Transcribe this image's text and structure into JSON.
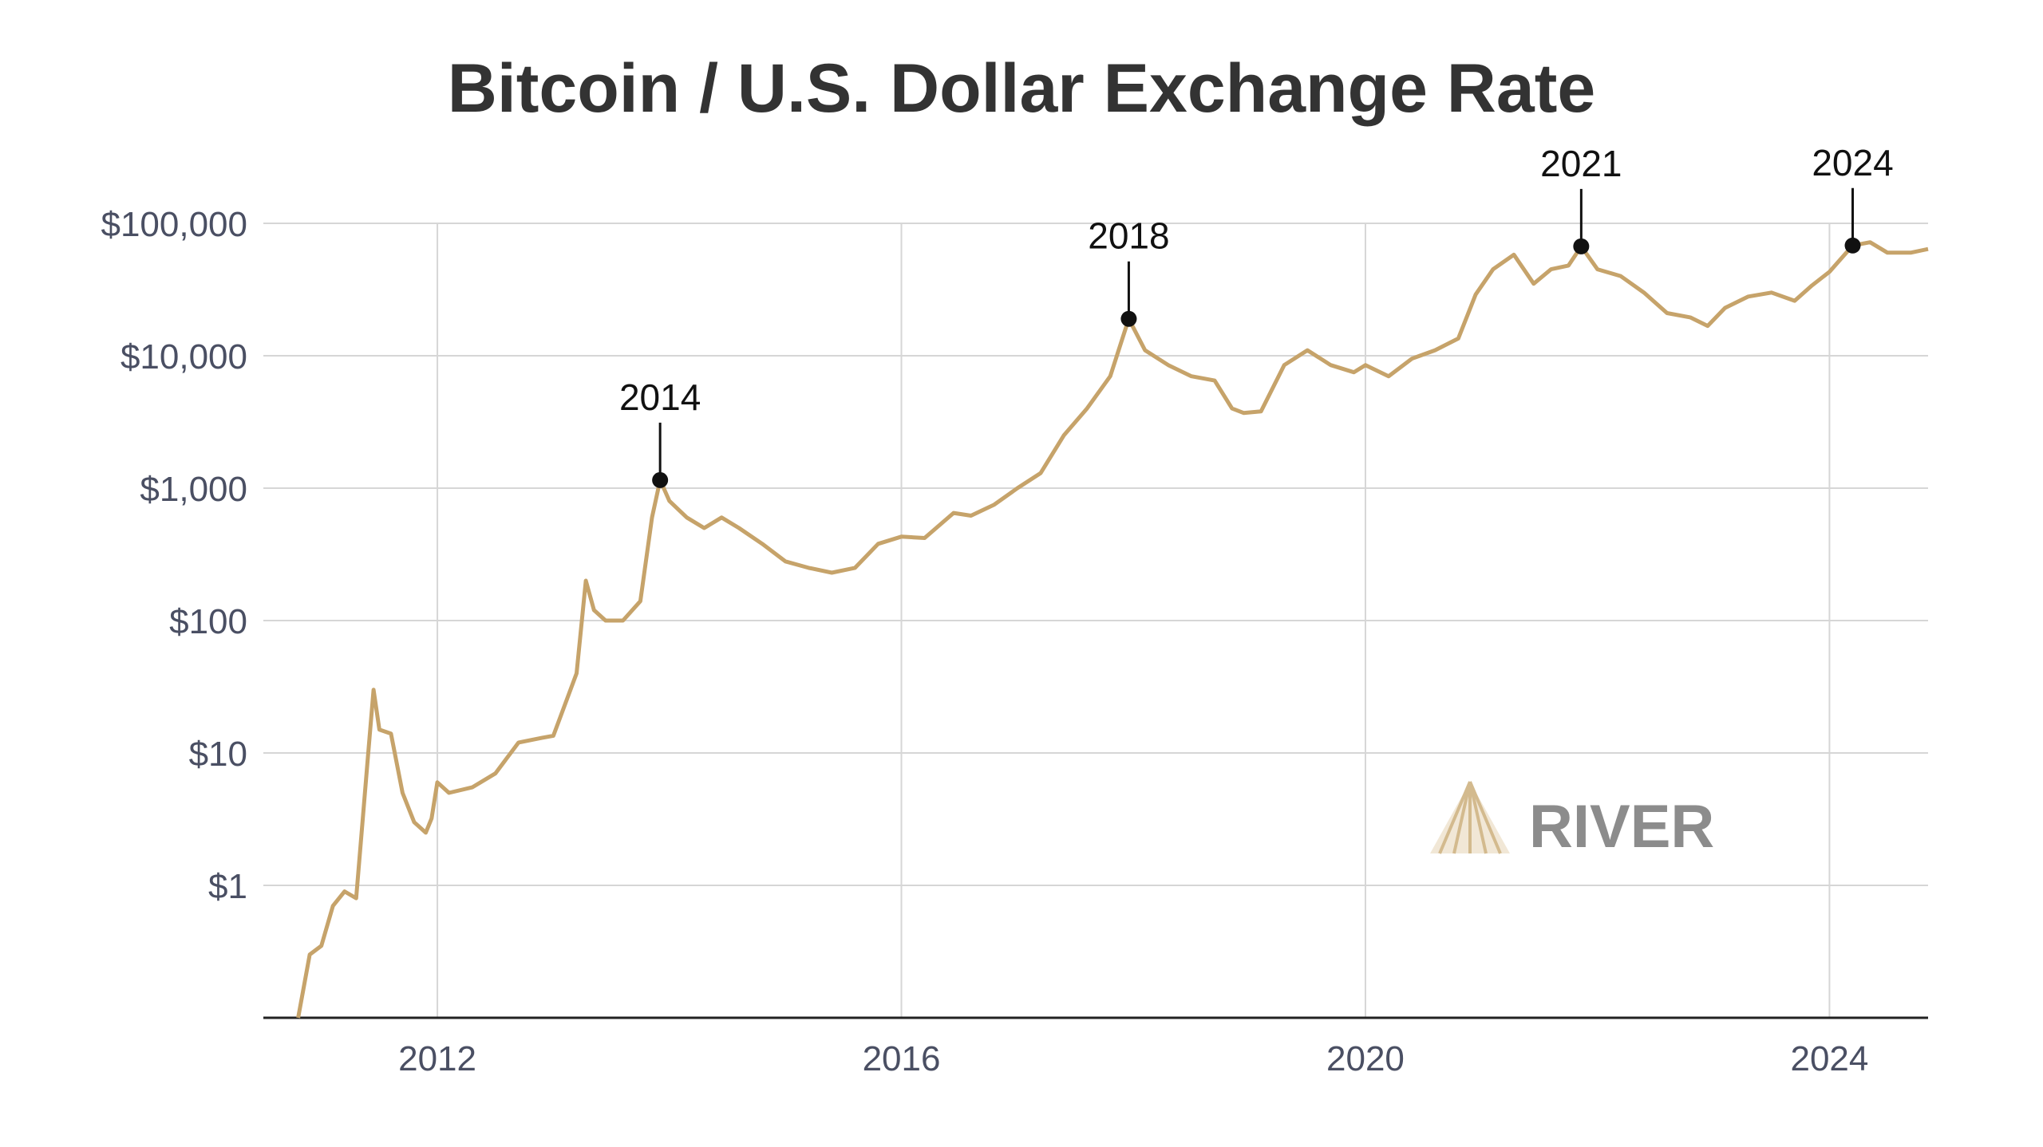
{
  "chart_data": {
    "type": "line",
    "title": "Bitcoin / U.S. Dollar Exchange Rate",
    "xlabel": "",
    "ylabel": "",
    "y_scale": "log",
    "grid": true,
    "x_ticks": [
      "2012",
      "2016",
      "2020",
      "2024"
    ],
    "x_tick_values": [
      2012,
      2016,
      2020,
      2024
    ],
    "y_ticks": [
      "$1",
      "$10",
      "$100",
      "$1,000",
      "$10,000",
      "$100,000"
    ],
    "y_tick_values": [
      1,
      10,
      100,
      1000,
      10000,
      100000
    ],
    "xlim": [
      2010.5,
      2024.85
    ],
    "ylim": [
      0.1,
      100000
    ],
    "line_color": "#c6a36a",
    "series": [
      {
        "x": [
          2010.8,
          2010.9,
          2011.0,
          2011.1,
          2011.2,
          2011.3,
          2011.4,
          2011.45,
          2011.5,
          2011.6,
          2011.7,
          2011.8,
          2011.9,
          2011.95,
          2012.0,
          2012.1,
          2012.3,
          2012.5,
          2012.7,
          2012.9,
          2013.0,
          2013.2,
          2013.28,
          2013.35,
          2013.45,
          2013.6,
          2013.75,
          2013.85,
          2013.92,
          2014.0,
          2014.15,
          2014.3,
          2014.45,
          2014.6,
          2014.8,
          2015.0,
          2015.2,
          2015.4,
          2015.6,
          2015.8,
          2016.0,
          2016.2,
          2016.45,
          2016.6,
          2016.8,
          2017.0,
          2017.2,
          2017.4,
          2017.6,
          2017.8,
          2017.96,
          2018.1,
          2018.3,
          2018.5,
          2018.7,
          2018.85,
          2018.95,
          2019.1,
          2019.3,
          2019.5,
          2019.7,
          2019.9,
          2020.0,
          2020.2,
          2020.4,
          2020.6,
          2020.8,
          2020.95,
          2021.1,
          2021.28,
          2021.45,
          2021.6,
          2021.75,
          2021.86,
          2022.0,
          2022.2,
          2022.4,
          2022.6,
          2022.8,
          2022.95,
          2023.1,
          2023.3,
          2023.5,
          2023.7,
          2023.85,
          2024.0,
          2024.2,
          2024.35,
          2024.5,
          2024.7,
          2024.85
        ],
        "y": [
          0.08,
          0.3,
          0.35,
          0.7,
          0.9,
          0.8,
          9,
          30,
          15,
          14,
          5,
          3,
          2.5,
          3.2,
          6,
          5,
          5.5,
          7,
          12,
          13,
          13.5,
          40,
          200,
          120,
          100,
          100,
          140,
          600,
          1150,
          800,
          600,
          500,
          600,
          500,
          380,
          280,
          250,
          230,
          250,
          380,
          430,
          420,
          650,
          620,
          750,
          1000,
          1300,
          2500,
          4000,
          7000,
          19000,
          11000,
          8500,
          7000,
          6500,
          4000,
          3700,
          3800,
          8500,
          11000,
          8500,
          7500,
          8500,
          7000,
          9500,
          11000,
          13500,
          29000,
          45000,
          58000,
          35000,
          45000,
          48000,
          67000,
          45000,
          40000,
          30000,
          21000,
          19500,
          16800,
          23000,
          28000,
          30000,
          26000,
          34000,
          43000,
          68000,
          72000,
          60000,
          60000,
          64000
        ]
      }
    ],
    "annotations": [
      {
        "label": "2014",
        "x": 2013.92,
        "y": 1150
      },
      {
        "label": "2018",
        "x": 2017.96,
        "y": 19000
      },
      {
        "label": "2021",
        "x": 2021.86,
        "y": 67000
      },
      {
        "label": "2024",
        "x": 2024.2,
        "y": 68000
      }
    ]
  },
  "logo": {
    "text": "RIVER",
    "icon": "river-mountain-icon",
    "color": "#8c8c8c",
    "icon_color": "#d8c3a0"
  }
}
